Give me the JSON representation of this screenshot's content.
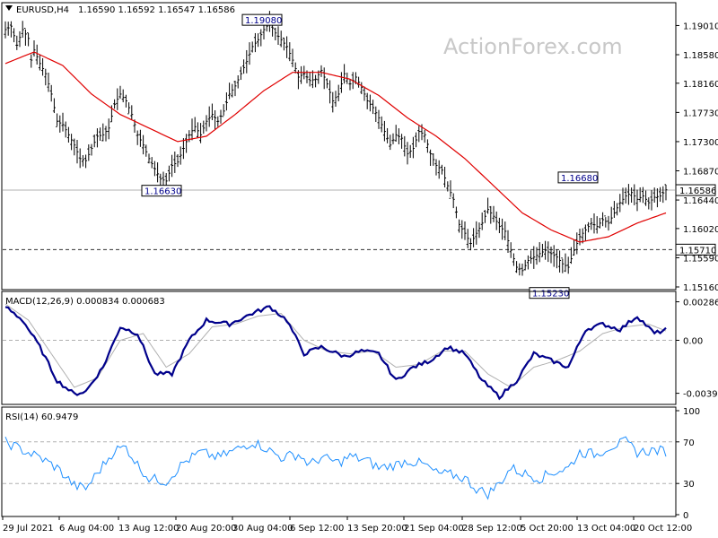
{
  "header": {
    "symbol_tf": "EURUSD,H4",
    "ohlc": "1.16590 1.16592 1.16547 1.16586"
  },
  "watermark": "ActionForex.com",
  "colors": {
    "price_bars": "#000000",
    "ma": "#e00000",
    "macd": "#00008b",
    "signal": "#b0b0b0",
    "rsi": "#1e8fff",
    "label_text": "#00008b"
  },
  "chart_data": [
    {
      "type": "candlestick",
      "name": "EURUSD,H4",
      "ylim": [
        1.1516,
        1.1928
      ],
      "y_ticks": [
        "1.19010",
        "1.18580",
        "1.18160",
        "1.17730",
        "1.17300",
        "1.16870",
        "1.16440",
        "1.16020",
        "1.15590",
        "1.15160"
      ],
      "x_ticks": [
        "29 Jul 2021",
        "6 Aug 04:00",
        "13 Aug 12:00",
        "20 Aug 20:00",
        "30 Aug 04:00",
        "6 Sep 12:00",
        "13 Sep 20:00",
        "21 Sep 04:00",
        "28 Sep 12:00",
        "5 Oct 20:00",
        "13 Oct 04:00",
        "20 Oct 12:00"
      ],
      "close_path": [
        [
          0,
          1.1895
        ],
        [
          2,
          1.19
        ],
        [
          4,
          1.1872
        ],
        [
          6,
          1.1895
        ],
        [
          8,
          1.1882
        ],
        [
          9,
          1.185
        ],
        [
          10,
          1.1865
        ],
        [
          12,
          1.1845
        ],
        [
          14,
          1.183
        ],
        [
          16,
          1.18
        ],
        [
          18,
          1.176
        ],
        [
          20,
          1.1755
        ],
        [
          22,
          1.174
        ],
        [
          24,
          1.1725
        ],
        [
          26,
          1.1705
        ],
        [
          28,
          1.1702
        ],
        [
          30,
          1.172
        ],
        [
          32,
          1.1738
        ],
        [
          34,
          1.174
        ],
        [
          36,
          1.175
        ],
        [
          38,
          1.1785
        ],
        [
          40,
          1.18
        ],
        [
          42,
          1.179
        ],
        [
          44,
          1.177
        ],
        [
          46,
          1.174
        ],
        [
          48,
          1.1725
        ],
        [
          50,
          1.1705
        ],
        [
          52,
          1.169
        ],
        [
          54,
          1.1675
        ],
        [
          56,
          1.1672
        ],
        [
          58,
          1.1695
        ],
        [
          60,
          1.17
        ],
        [
          62,
          1.172
        ],
        [
          64,
          1.174
        ],
        [
          66,
          1.1752
        ],
        [
          68,
          1.174
        ],
        [
          70,
          1.176
        ],
        [
          72,
          1.177
        ],
        [
          74,
          1.176
        ],
        [
          76,
          1.1775
        ],
        [
          78,
          1.18
        ],
        [
          80,
          1.1812
        ],
        [
          82,
          1.183
        ],
        [
          84,
          1.1848
        ],
        [
          86,
          1.187
        ],
        [
          88,
          1.188
        ],
        [
          90,
          1.1895
        ],
        [
          92,
          1.1905
        ],
        [
          94,
          1.189
        ],
        [
          96,
          1.188
        ],
        [
          98,
          1.187
        ],
        [
          100,
          1.185
        ],
        [
          102,
          1.1825
        ],
        [
          104,
          1.183
        ],
        [
          106,
          1.182
        ],
        [
          108,
          1.1822
        ],
        [
          110,
          1.1835
        ],
        [
          112,
          1.1815
        ],
        [
          114,
          1.179
        ],
        [
          116,
          1.18
        ],
        [
          118,
          1.183
        ],
        [
          120,
          1.1815
        ],
        [
          122,
          1.1825
        ],
        [
          124,
          1.181
        ],
        [
          126,
          1.179
        ],
        [
          128,
          1.178
        ],
        [
          130,
          1.1765
        ],
        [
          132,
          1.1745
        ],
        [
          134,
          1.1725
        ],
        [
          136,
          1.174
        ],
        [
          138,
          1.1735
        ],
        [
          140,
          1.1712
        ],
        [
          142,
          1.172
        ],
        [
          144,
          1.1745
        ],
        [
          146,
          1.174
        ],
        [
          148,
          1.1712
        ],
        [
          150,
          1.1695
        ],
        [
          152,
          1.1688
        ],
        [
          154,
          1.1665
        ],
        [
          156,
          1.1645
        ],
        [
          158,
          1.1608
        ],
        [
          160,
          1.1595
        ],
        [
          162,
          1.158
        ],
        [
          164,
          1.1595
        ],
        [
          166,
          1.161
        ],
        [
          168,
          1.163
        ],
        [
          170,
          1.162
        ],
        [
          172,
          1.1605
        ],
        [
          174,
          1.1598
        ],
        [
          176,
          1.157
        ],
        [
          178,
          1.1545
        ],
        [
          180,
          1.154
        ],
        [
          182,
          1.1555
        ],
        [
          184,
          1.156
        ],
        [
          186,
          1.1565
        ],
        [
          188,
          1.157
        ],
        [
          190,
          1.1565
        ],
        [
          192,
          1.156
        ],
        [
          194,
          1.155
        ],
        [
          196,
          1.1545
        ],
        [
          198,
          1.157
        ],
        [
          200,
          1.159
        ],
        [
          202,
          1.16
        ],
        [
          204,
          1.161
        ],
        [
          206,
          1.1605
        ],
        [
          208,
          1.1615
        ],
        [
          210,
          1.161
        ],
        [
          212,
          1.1625
        ],
        [
          214,
          1.164
        ],
        [
          216,
          1.165
        ],
        [
          218,
          1.1655
        ],
        [
          220,
          1.1645
        ],
        [
          222,
          1.165
        ],
        [
          224,
          1.164
        ],
        [
          226,
          1.1648
        ],
        [
          228,
          1.165
        ],
        [
          230,
          1.1659
        ]
      ],
      "bar_range": 0.0018,
      "overlay": {
        "name": "MA",
        "points": [
          [
            0,
            1.1845
          ],
          [
            10,
            1.1862
          ],
          [
            20,
            1.1842
          ],
          [
            30,
            1.18
          ],
          [
            40,
            1.177
          ],
          [
            50,
            1.175
          ],
          [
            60,
            1.173
          ],
          [
            70,
            1.1738
          ],
          [
            80,
            1.177
          ],
          [
            90,
            1.1805
          ],
          [
            100,
            1.1832
          ],
          [
            110,
            1.1832
          ],
          [
            120,
            1.1822
          ],
          [
            130,
            1.1798
          ],
          [
            140,
            1.1765
          ],
          [
            150,
            1.1738
          ],
          [
            160,
            1.1705
          ],
          [
            170,
            1.1665
          ],
          [
            180,
            1.1625
          ],
          [
            190,
            1.16
          ],
          [
            200,
            1.1582
          ],
          [
            210,
            1.159
          ],
          [
            220,
            1.161
          ],
          [
            230,
            1.1625
          ]
        ]
      },
      "horizontal_lines": [
        {
          "value": 1.16586,
          "style": "solid",
          "label": "1.16586"
        },
        {
          "value": 1.1571,
          "style": "dashed",
          "label": "1.15710"
        }
      ],
      "annotations": [
        {
          "text": "1.19080",
          "x": 90,
          "y": 1.1908
        },
        {
          "text": "1.16630",
          "x": 55,
          "y": 1.1663
        },
        {
          "text": "1.16680",
          "x": 200,
          "y": 1.1668
        },
        {
          "text": "1.15230",
          "x": 190,
          "y": 1.1523
        }
      ]
    },
    {
      "type": "line",
      "name": "MACD(12,26,9) 0.000834 0.000683",
      "ylim": [
        -0.0045,
        0.0033
      ],
      "y_ticks": [
        "0.002861",
        "0.00",
        "-0.00394"
      ],
      "series": [
        {
          "name": "MACD",
          "points": [
            [
              0,
              0.0025
            ],
            [
              6,
              0.0015
            ],
            [
              12,
              -0.0005
            ],
            [
              18,
              -0.003
            ],
            [
              24,
              -0.004
            ],
            [
              28,
              -0.0038
            ],
            [
              34,
              -0.002
            ],
            [
              40,
              0.001
            ],
            [
              46,
              0.0005
            ],
            [
              52,
              -0.0025
            ],
            [
              58,
              -0.0025
            ],
            [
              64,
              0.0
            ],
            [
              70,
              0.0015
            ],
            [
              78,
              0.0012
            ],
            [
              86,
              0.002
            ],
            [
              92,
              0.0025
            ],
            [
              98,
              0.0015
            ],
            [
              104,
              -0.001
            ],
            [
              110,
              -0.0005
            ],
            [
              118,
              -0.0012
            ],
            [
              124,
              -0.0008
            ],
            [
              130,
              -0.001
            ],
            [
              136,
              -0.003
            ],
            [
              142,
              -0.002
            ],
            [
              148,
              -0.0015
            ],
            [
              154,
              -0.0005
            ],
            [
              160,
              -0.001
            ],
            [
              166,
              -0.003
            ],
            [
              172,
              -0.0042
            ],
            [
              178,
              -0.003
            ],
            [
              184,
              -0.001
            ],
            [
              190,
              -0.0015
            ],
            [
              196,
              -0.002
            ],
            [
              202,
              0.0008
            ],
            [
              208,
              0.0012
            ],
            [
              214,
              0.0008
            ],
            [
              220,
              0.0018
            ],
            [
              226,
              0.0005
            ],
            [
              230,
              0.0008
            ]
          ]
        },
        {
          "name": "Signal",
          "points": [
            [
              0,
              0.0027
            ],
            [
              8,
              0.0015
            ],
            [
              16,
              -0.001
            ],
            [
              24,
              -0.0035
            ],
            [
              32,
              -0.0028
            ],
            [
              40,
              0.0
            ],
            [
              48,
              0.0005
            ],
            [
              56,
              -0.002
            ],
            [
              64,
              -0.001
            ],
            [
              72,
              0.001
            ],
            [
              80,
              0.0012
            ],
            [
              88,
              0.0018
            ],
            [
              96,
              0.002
            ],
            [
              104,
              0.0
            ],
            [
              112,
              -0.0008
            ],
            [
              120,
              -0.001
            ],
            [
              128,
              -0.0008
            ],
            [
              136,
              -0.002
            ],
            [
              144,
              -0.0018
            ],
            [
              152,
              -0.0008
            ],
            [
              160,
              -0.0008
            ],
            [
              168,
              -0.0025
            ],
            [
              176,
              -0.0035
            ],
            [
              184,
              -0.002
            ],
            [
              192,
              -0.0015
            ],
            [
              200,
              -0.0008
            ],
            [
              208,
              0.0005
            ],
            [
              216,
              0.001
            ],
            [
              224,
              0.0012
            ],
            [
              230,
              0.0007
            ]
          ]
        }
      ]
    },
    {
      "type": "line",
      "name": "RSI(14) 60.9479",
      "ylim": [
        0,
        100
      ],
      "y_ticks": [
        "100",
        "70",
        "30",
        "0"
      ],
      "levels": [
        70,
        30
      ],
      "series": [
        {
          "name": "RSI",
          "points": [
            [
              0,
              70
            ],
            [
              6,
              62
            ],
            [
              12,
              55
            ],
            [
              18,
              45
            ],
            [
              24,
              28
            ],
            [
              28,
              25
            ],
            [
              32,
              40
            ],
            [
              38,
              62
            ],
            [
              42,
              65
            ],
            [
              46,
              48
            ],
            [
              50,
              35
            ],
            [
              56,
              32
            ],
            [
              62,
              50
            ],
            [
              68,
              60
            ],
            [
              74,
              55
            ],
            [
              80,
              62
            ],
            [
              86,
              70
            ],
            [
              90,
              65
            ],
            [
              96,
              55
            ],
            [
              102,
              58
            ],
            [
              106,
              48
            ],
            [
              110,
              55
            ],
            [
              116,
              50
            ],
            [
              120,
              56
            ],
            [
              126,
              52
            ],
            [
              130,
              45
            ],
            [
              136,
              48
            ],
            [
              140,
              52
            ],
            [
              146,
              48
            ],
            [
              150,
              40
            ],
            [
              156,
              38
            ],
            [
              160,
              35
            ],
            [
              164,
              25
            ],
            [
              168,
              20
            ],
            [
              172,
              30
            ],
            [
              176,
              45
            ],
            [
              180,
              40
            ],
            [
              186,
              35
            ],
            [
              190,
              40
            ],
            [
              196,
              45
            ],
            [
              200,
              60
            ],
            [
              206,
              58
            ],
            [
              210,
              65
            ],
            [
              216,
              70
            ],
            [
              220,
              60
            ],
            [
              226,
              62
            ],
            [
              230,
              60.9
            ]
          ]
        }
      ]
    }
  ]
}
